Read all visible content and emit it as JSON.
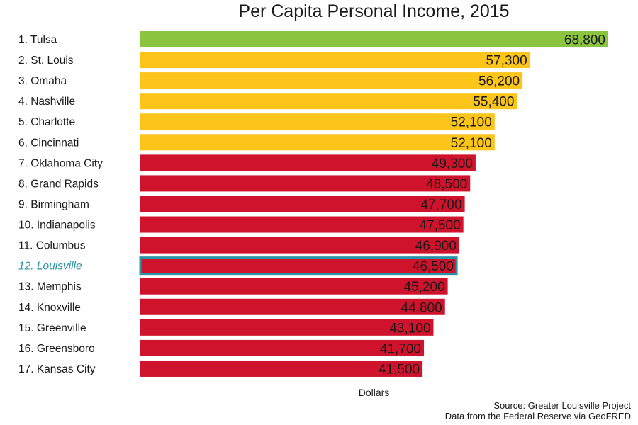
{
  "chart_data": {
    "type": "bar",
    "orientation": "horizontal",
    "title": "Per Capita Personal Income, 2015",
    "xlabel": "Dollars",
    "ylabel": "",
    "grid": false,
    "categories": [
      "1. Tulsa",
      "2. St. Louis",
      "3. Omaha",
      "4. Nashville",
      "5. Charlotte",
      "6. Cincinnati",
      "7. Oklahoma City",
      "8. Grand Rapids",
      "9. Birmingham",
      "10. Indianapolis",
      "11. Columbus",
      "12. Louisville",
      "13. Memphis",
      "14. Knoxville",
      "15. Greenville",
      "16. Greensboro",
      "17. Kansas City"
    ],
    "values": [
      68800,
      57300,
      56200,
      55400,
      52100,
      52100,
      49300,
      48500,
      47700,
      47500,
      46900,
      46500,
      45200,
      44800,
      43100,
      41700,
      41500
    ],
    "value_labels": [
      "68,800",
      "57,300",
      "56,200",
      "55,400",
      "52,100",
      "52,100",
      "49,300",
      "48,500",
      "47,700",
      "47,500",
      "46,900",
      "46,500",
      "45,200",
      "44,800",
      "43,100",
      "41,700",
      "41,500"
    ],
    "bar_colors": [
      "#8bc53f",
      "#fdc51a",
      "#fdc51a",
      "#fdc51a",
      "#fdc51a",
      "#fdc51a",
      "#d0132d",
      "#d0132d",
      "#d0132d",
      "#d0132d",
      "#d0132d",
      "#d0132d",
      "#d0132d",
      "#d0132d",
      "#d0132d",
      "#d0132d",
      "#d0132d"
    ],
    "highlight_category": "12. Louisville",
    "highlight_color": "#2a93a6"
  },
  "footer": {
    "source_line_1": "Source: Greater Louisville Project",
    "source_line_2": "Data from the Federal Reserve via GeoFRED"
  }
}
